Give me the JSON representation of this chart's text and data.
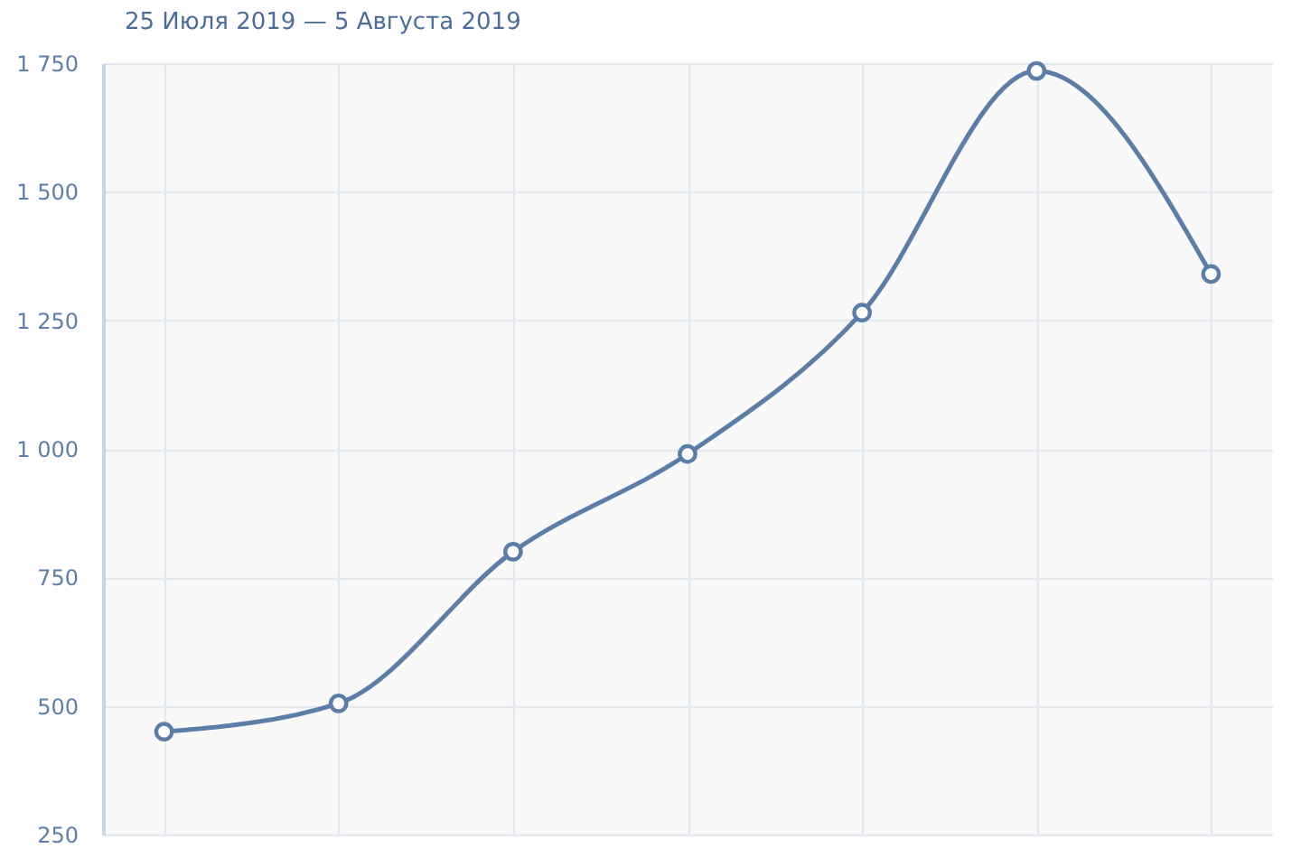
{
  "chart_data": {
    "type": "line",
    "title": "25 Июля 2019 — 5 Августа 2019",
    "categories": [
      null,
      null,
      null,
      null,
      null,
      null,
      null
    ],
    "values": [
      450,
      505,
      800,
      990,
      1265,
      1735,
      1340
    ],
    "color": "#5b7da6",
    "marker": "circle",
    "grid": true,
    "tick_labels": "y",
    "ylim": [
      250,
      1750
    ],
    "yticks": [
      250,
      500,
      750,
      {
        "value": 1000,
        "label": "1 000"
      },
      {
        "value": 1250,
        "label": "1 250"
      },
      {
        "value": 1500,
        "label": "1 500"
      },
      {
        "value": 1750,
        "label": "1 750"
      }
    ]
  }
}
